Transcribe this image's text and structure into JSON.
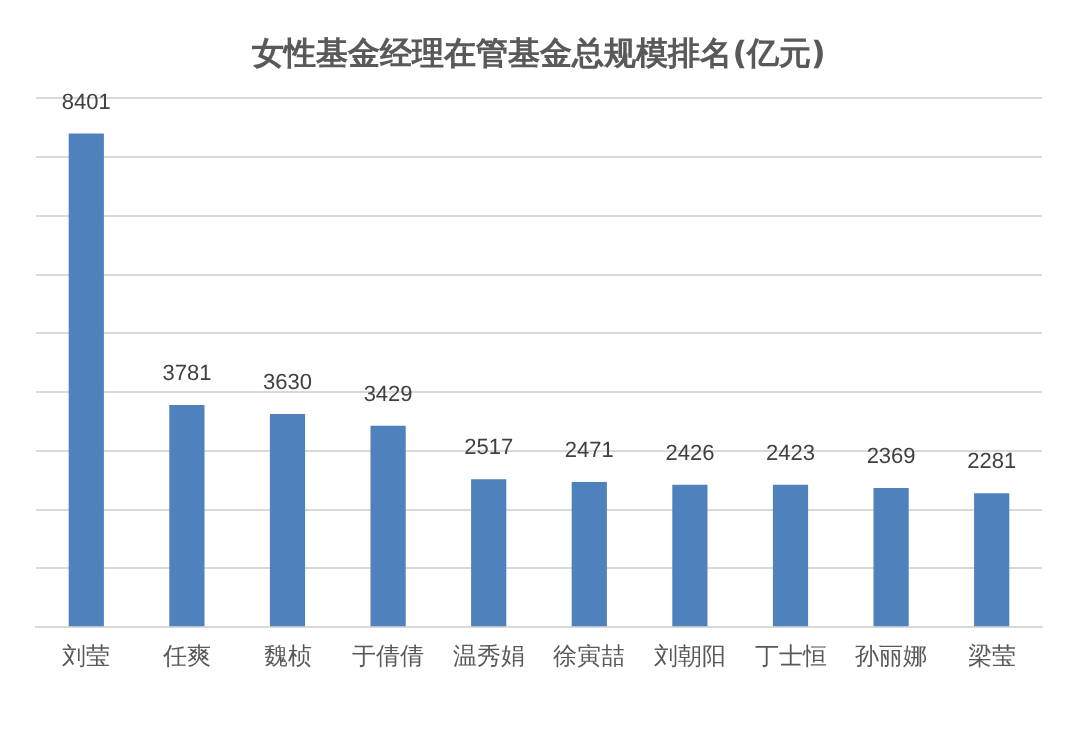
{
  "chart_data": {
    "type": "bar",
    "title": "女性基金经理在管基金总规模排名(亿元)",
    "categories": [
      "刘莹",
      "任爽",
      "魏桢",
      "于倩倩",
      "温秀娟",
      "徐寅喆",
      "刘朝阳",
      "丁士恒",
      "孙丽娜",
      "梁莹"
    ],
    "values": [
      8401,
      3781,
      3630,
      3429,
      2517,
      2471,
      2426,
      2423,
      2369,
      2281
    ],
    "color": "#4f81bd",
    "ylim": [
      0,
      9000
    ],
    "yticks": [
      {
        "value": 0,
        "label": null
      },
      {
        "value": 1000,
        "label": null
      },
      {
        "value": 2000,
        "label": null
      },
      {
        "value": 3000,
        "label": null
      },
      {
        "value": 4000,
        "label": null
      },
      {
        "value": 5000,
        "label": null
      },
      {
        "value": 6000,
        "label": null
      },
      {
        "value": 7000,
        "label": null
      },
      {
        "value": 8000,
        "label": null
      },
      {
        "value": 9000,
        "label": null
      }
    ],
    "tick_labels": "x",
    "grid": "y",
    "data_labels": true
  }
}
